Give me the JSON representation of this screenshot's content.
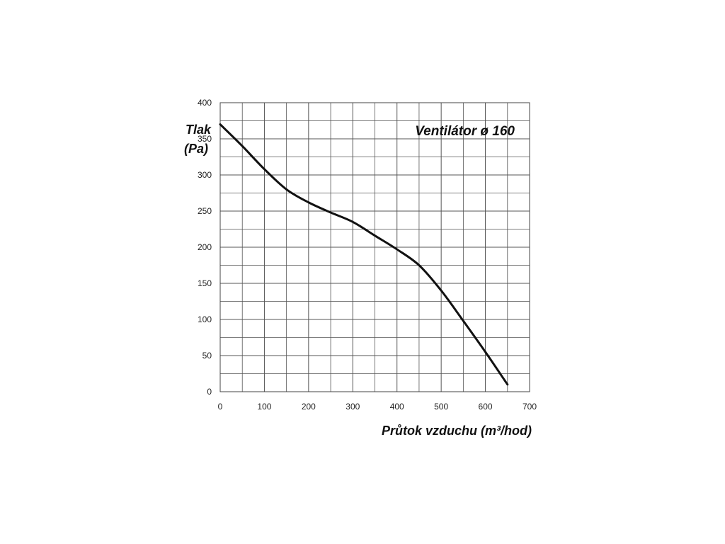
{
  "chart_data": {
    "type": "line",
    "title": "Ventilátor ø 160",
    "ylabel": "Tlak",
    "ylabel_unit": "(Pa)",
    "xlabel": "Průtok vzduchu (m³/hod)",
    "xlim": [
      0,
      700
    ],
    "ylim": [
      0,
      400
    ],
    "x_ticks": [
      "0",
      "100",
      "200",
      "300",
      "400",
      "500",
      "600",
      "700"
    ],
    "y_ticks": [
      "0",
      "50",
      "100",
      "150",
      "200",
      "250",
      "300",
      "350",
      "400"
    ],
    "x_minor_step": 50,
    "y_minor_step": 25,
    "grid": true,
    "legend": "none",
    "line_color": "#111111",
    "grid_color": "#555555",
    "series": [
      {
        "x": [
          0,
          50,
          100,
          150,
          200,
          250,
          300,
          350,
          400,
          450,
          500,
          550,
          600,
          650
        ],
        "y": [
          370,
          340,
          308,
          280,
          262,
          248,
          235,
          216,
          197,
          175,
          140,
          98,
          55,
          10
        ]
      }
    ]
  }
}
